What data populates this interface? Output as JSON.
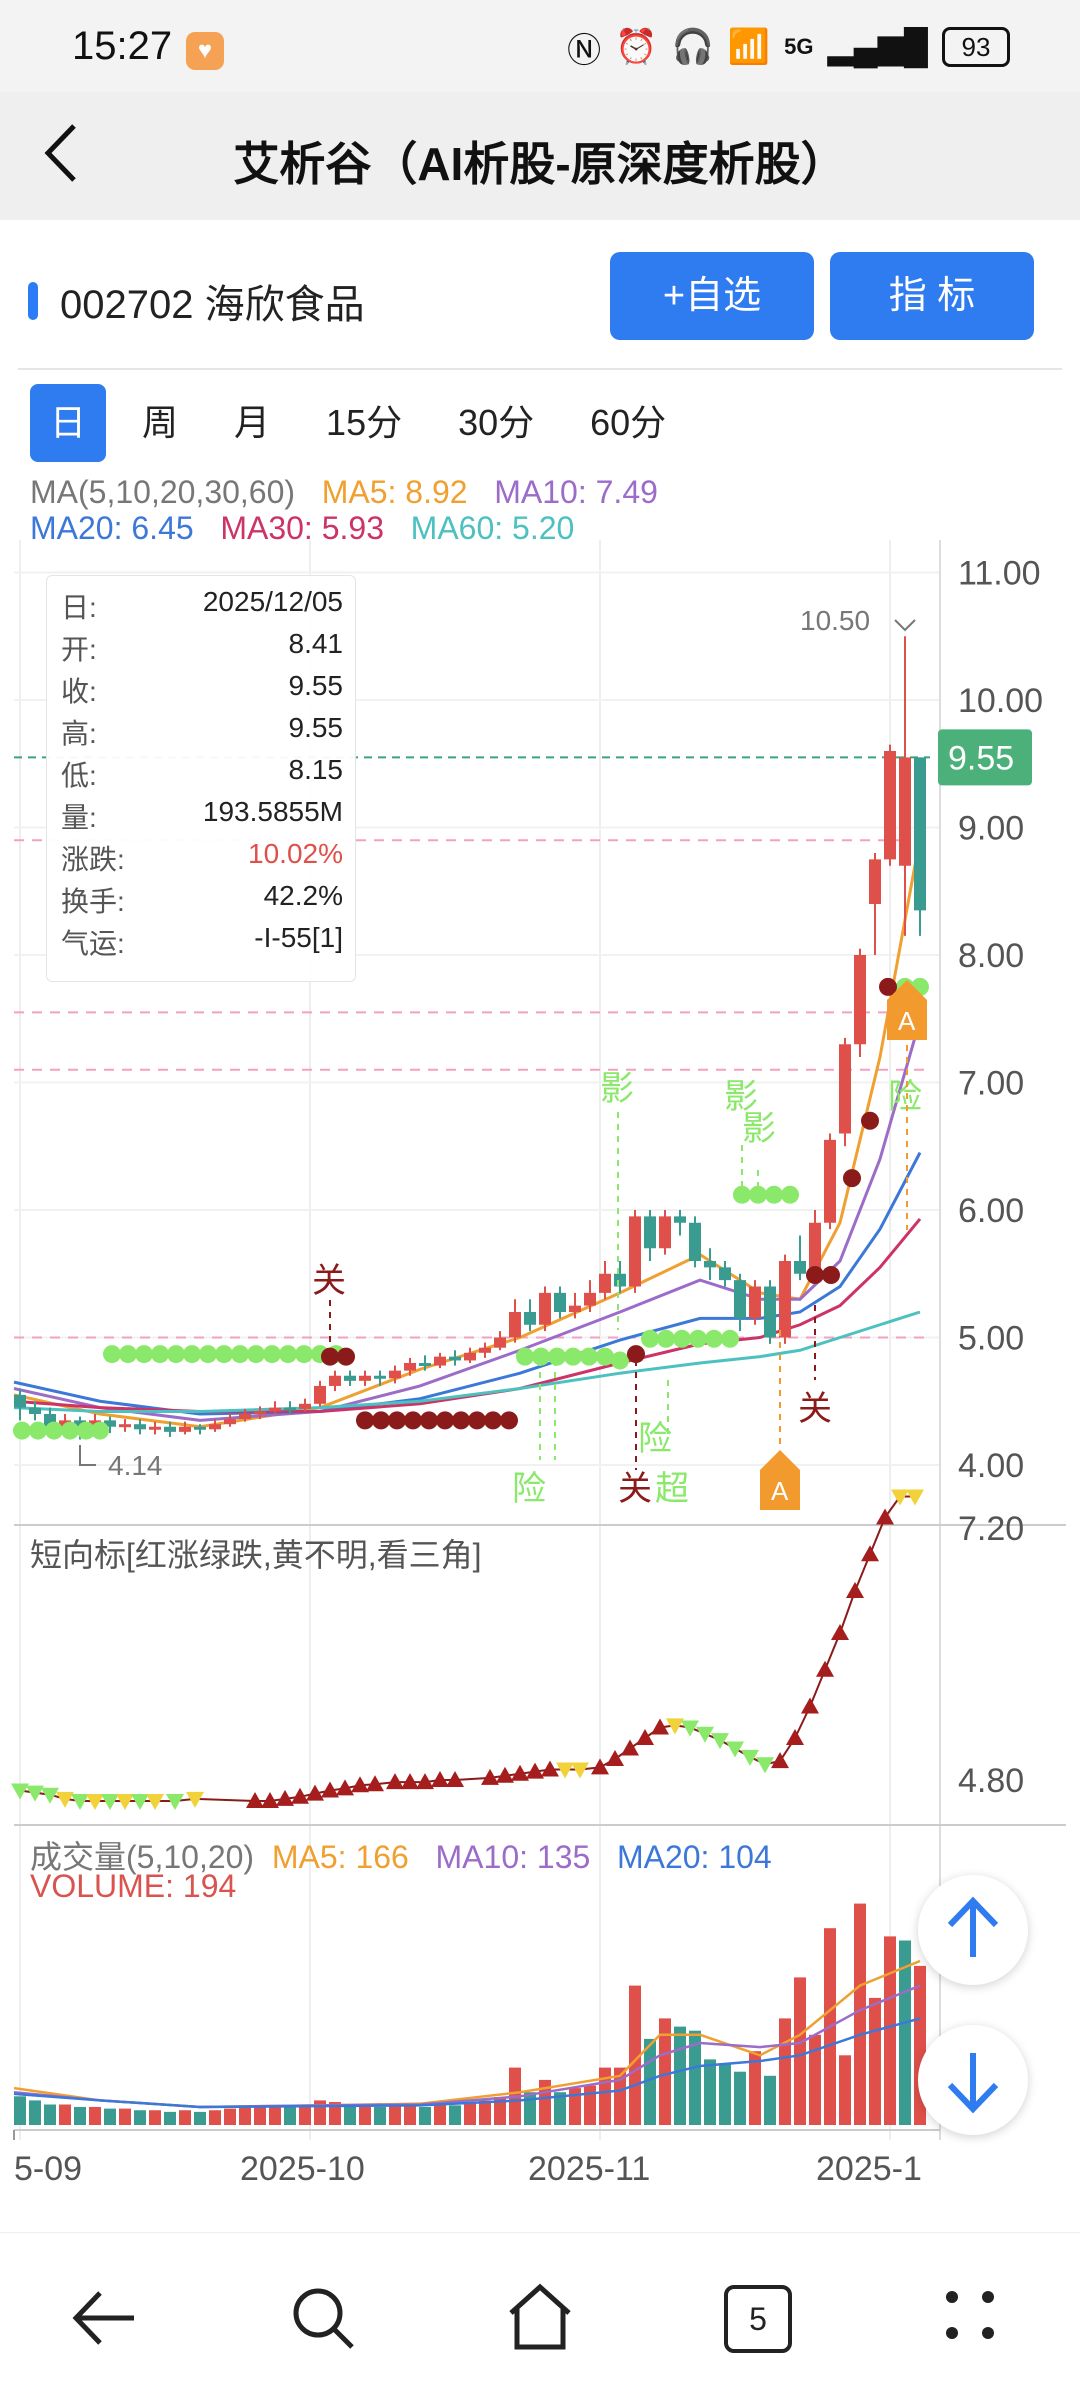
{
  "status": {
    "time": "15:27",
    "battery": "93",
    "network": "5G"
  },
  "nav": {
    "title": "艾析谷（AI析股-原深度析股）"
  },
  "stock": {
    "code_name": "002702 海欣食品"
  },
  "buttons": {
    "watchlist": "+自选",
    "indicator": "指 标"
  },
  "tabs": [
    "日",
    "周",
    "月",
    "15分",
    "30分",
    "60分"
  ],
  "ma": {
    "label": "MA(5,10,20,30,60)",
    "ma5": "MA5: 8.92",
    "ma10": "MA10: 7.49",
    "ma20": "MA20: 6.45",
    "ma30": "MA30: 5.93",
    "ma60": "MA60: 5.20"
  },
  "info": {
    "date_k": "日:",
    "date_v": "2025/12/05",
    "open_k": "开:",
    "open_v": "8.41",
    "close_k": "收:",
    "close_v": "9.55",
    "high_k": "高:",
    "high_v": "9.55",
    "low_k": "低:",
    "low_v": "8.15",
    "vol_k": "量:",
    "vol_v": "193.5855M",
    "chg_k": "涨跌:",
    "chg_v": "10.02%",
    "turn_k": "换手:",
    "turn_v": "42.2%",
    "luck_k": "气运:",
    "luck_v": "-I-55[1]"
  },
  "price_axis": [
    "11.00",
    "10.00",
    "9.00",
    "8.00",
    "7.00",
    "6.00",
    "5.00",
    "4.00"
  ],
  "current_price": "9.55",
  "high_mark": "10.50",
  "low_mark": "4.14",
  "annotations": [
    "关",
    "影",
    "影影",
    "险",
    "险",
    "关",
    "险",
    "超",
    "关",
    "A",
    "A"
  ],
  "sub1": {
    "label": "短向标[红涨绿跌,黄不明,看三角]",
    "axis": [
      "7.20",
      "4.80"
    ]
  },
  "volume": {
    "label": "成交量(5,10,20)",
    "ma5": "MA5: 166",
    "ma10": "MA10: 135",
    "ma20": "MA20: 104",
    "volume": "VOLUME: 194"
  },
  "x_axis": [
    "5-09",
    "2025-10",
    "2025-11",
    "2025-1"
  ],
  "colors": {
    "up": "#e0504a",
    "down": "#3a9c90",
    "accent": "#2f7bf0",
    "ma5": "#f0a030",
    "ma10": "#9b6cc8",
    "ma20": "#3b78d8",
    "ma30": "#cc3366",
    "ma60": "#4dc0c0",
    "signal_green": "#8ae86a",
    "signal_red": "#8b1a1a"
  },
  "icons": [
    "back-arrow-icon",
    "search-icon",
    "home-icon",
    "tabs-count-icon",
    "more-icon",
    "up-arrow-icon",
    "down-arrow-icon"
  ],
  "bottom_nav": {
    "tabs_count": "5"
  }
}
